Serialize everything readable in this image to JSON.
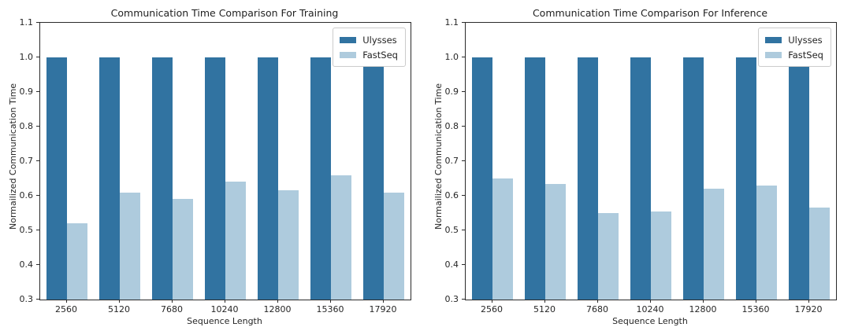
{
  "figure": {
    "background": "#ffffff",
    "axis_color": "#2a2a2a",
    "text_color": "#262626"
  },
  "chart_data": [
    {
      "type": "bar",
      "title": "Communication Time Comparison For Training",
      "xlabel": "Sequence Length",
      "ylabel": "Normailized Communication Time",
      "categories": [
        "2560",
        "5120",
        "7680",
        "10240",
        "12800",
        "15360",
        "17920"
      ],
      "series": [
        {
          "name": "Ulysses",
          "color": "#3173a1",
          "values": [
            1.0,
            1.0,
            1.0,
            1.0,
            1.0,
            1.0,
            1.0
          ]
        },
        {
          "name": "FastSeq",
          "color": "#aecbdd",
          "values": [
            0.52,
            0.61,
            0.59,
            0.64,
            0.615,
            0.66,
            0.61
          ]
        }
      ],
      "ylim": [
        0.3,
        1.1
      ],
      "yticks": [
        "0.3",
        "0.4",
        "0.5",
        "0.6",
        "0.7",
        "0.8",
        "0.9",
        "1.0",
        "1.1"
      ],
      "legend_position": "upper right",
      "grid": false
    },
    {
      "type": "bar",
      "title": "Communication Time Comparison For Inference",
      "xlabel": "Sequence Length",
      "ylabel": "Normailized Communication Time",
      "categories": [
        "2560",
        "5120",
        "7680",
        "10240",
        "12800",
        "15360",
        "17920"
      ],
      "series": [
        {
          "name": "Ulysses",
          "color": "#3173a1",
          "values": [
            1.0,
            1.0,
            1.0,
            1.0,
            1.0,
            1.0,
            1.0
          ]
        },
        {
          "name": "FastSeq",
          "color": "#aecbdd",
          "values": [
            0.65,
            0.635,
            0.55,
            0.555,
            0.62,
            0.63,
            0.565
          ]
        }
      ],
      "ylim": [
        0.3,
        1.1
      ],
      "yticks": [
        "0.3",
        "0.4",
        "0.5",
        "0.6",
        "0.7",
        "0.8",
        "0.9",
        "1.0",
        "1.1"
      ],
      "legend_position": "upper right",
      "grid": false
    }
  ]
}
